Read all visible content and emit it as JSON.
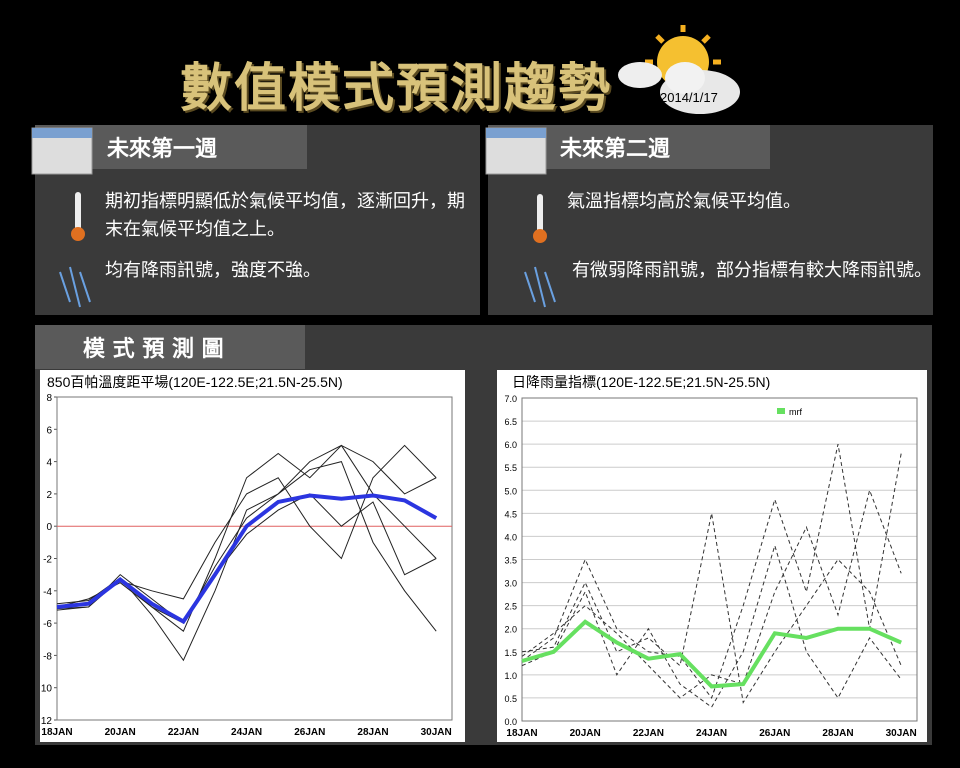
{
  "header": {
    "title": "數值模式預測趨勢",
    "date": "2014/1/17"
  },
  "panels": [
    {
      "title": "未來第一週",
      "temperature": "期初指標明顯低於氣候平均值，逐漸回升，期末在氣候平均值之上。",
      "rain": "均有降雨訊號，強度不強。"
    },
    {
      "title": "未來第二週",
      "temperature": "氣溫指標均高於氣候平均值。",
      "rain": "有微弱降雨訊號，部分指標有較大降雨訊號。"
    }
  ],
  "section": {
    "title": "模 式 預 測 圖"
  },
  "chart_data": [
    {
      "type": "line",
      "title": "850百帕溫度距平場(120E-122.5E;21.5N-25.5N)",
      "categories": [
        "18JAN",
        null,
        "20JAN",
        null,
        "22JAN",
        null,
        "24JAN",
        null,
        "26JAN",
        null,
        "28JAN",
        null,
        "30JAN"
      ],
      "ylim": [
        -12,
        8
      ],
      "yticks": [
        8,
        6,
        4,
        2,
        0,
        -2,
        -4,
        -6,
        -8,
        {
          "value": -10,
          "label": "10"
        },
        {
          "value": -12,
          "label": "12"
        }
      ],
      "reference_line": {
        "value": 0,
        "color": "#e06060"
      },
      "series": [
        {
          "color": "#222222",
          "values": [
            -5,
            -4.5,
            -3.5,
            -5,
            -6.5,
            -2,
            3,
            4.5,
            3,
            5,
            4,
            2,
            3
          ]
        },
        {
          "color": "#222222",
          "values": [
            -5.2,
            -5,
            -3,
            -4.5,
            -6,
            -3,
            -0.5,
            1,
            2,
            0,
            1.5,
            -3,
            -2
          ]
        },
        {
          "color": "#222222",
          "values": [
            -4.8,
            -4.6,
            -3.2,
            -5.5,
            -8.3,
            -4,
            1,
            2,
            3.5,
            4,
            -1,
            -4,
            -6.5
          ]
        },
        {
          "color": "#222222",
          "values": [
            -5,
            -4.8,
            -3.4,
            -4,
            -4.5,
            -1,
            2,
            3,
            0,
            -2,
            3,
            5,
            3
          ]
        },
        {
          "color": "#222222",
          "values": [
            -5.1,
            -5,
            -3.3,
            -5,
            -6,
            -2.5,
            0.5,
            2,
            4,
            5,
            2,
            0,
            -2
          ]
        },
        {
          "color": "#2b35e0",
          "width": 4,
          "values": [
            -5,
            -4.8,
            -3.3,
            -4.8,
            -5.9,
            -3,
            0,
            1.5,
            1.9,
            1.7,
            1.9,
            1.6,
            0.5
          ]
        }
      ]
    },
    {
      "type": "line",
      "title": "日降雨量指標(120E-122.5E;21.5N-25.5N)",
      "categories": [
        "18JAN",
        null,
        "20JAN",
        null,
        "22JAN",
        null,
        "24JAN",
        null,
        "26JAN",
        null,
        "28JAN",
        null,
        "30JAN"
      ],
      "ylim": [
        0,
        7
      ],
      "yticks": [
        {
          "value": 0,
          "label": "0.0"
        },
        0.5,
        {
          "value": 1,
          "label": "1.0"
        },
        1.5,
        {
          "value": 2,
          "label": "2.0"
        },
        2.5,
        {
          "value": 3,
          "label": "3.0"
        },
        3.5,
        {
          "value": 4,
          "label": "4.0"
        },
        4.5,
        {
          "value": 5,
          "label": "5.0"
        },
        5.5,
        {
          "value": 6,
          "label": "6.0"
        },
        6.5,
        {
          "value": 7,
          "label": "7.0"
        }
      ],
      "grid": true,
      "dashed_members": true,
      "series": [
        {
          "color": "#333333",
          "values": [
            1.3,
            1.8,
            3.5,
            2,
            1.5,
            1.4,
            0.5,
            2.5,
            4.8,
            2.8,
            6,
            2,
            5.8
          ]
        },
        {
          "color": "#333333",
          "values": [
            1.5,
            1.6,
            3,
            1.5,
            1.8,
            1.2,
            4.5,
            0.4,
            1.5,
            2.5,
            3.5,
            2.8,
            1.2
          ]
        },
        {
          "color": "#333333",
          "values": [
            1.2,
            1.5,
            2.8,
            1,
            2,
            0.8,
            0.3,
            1.5,
            3.8,
            1.5,
            0.5,
            1.8,
            0.9
          ]
        },
        {
          "color": "#333333",
          "values": [
            1.4,
            1.9,
            2.5,
            1.9,
            1.2,
            0.5,
            1,
            0.8,
            2.8,
            4.2,
            2.3,
            5,
            3.2
          ]
        },
        {
          "name": "mrf",
          "color": "#66e060",
          "width": 4,
          "values": [
            1.3,
            1.5,
            2.15,
            1.7,
            1.35,
            1.45,
            0.75,
            0.8,
            1.9,
            1.8,
            2,
            2,
            1.7
          ]
        }
      ]
    }
  ]
}
